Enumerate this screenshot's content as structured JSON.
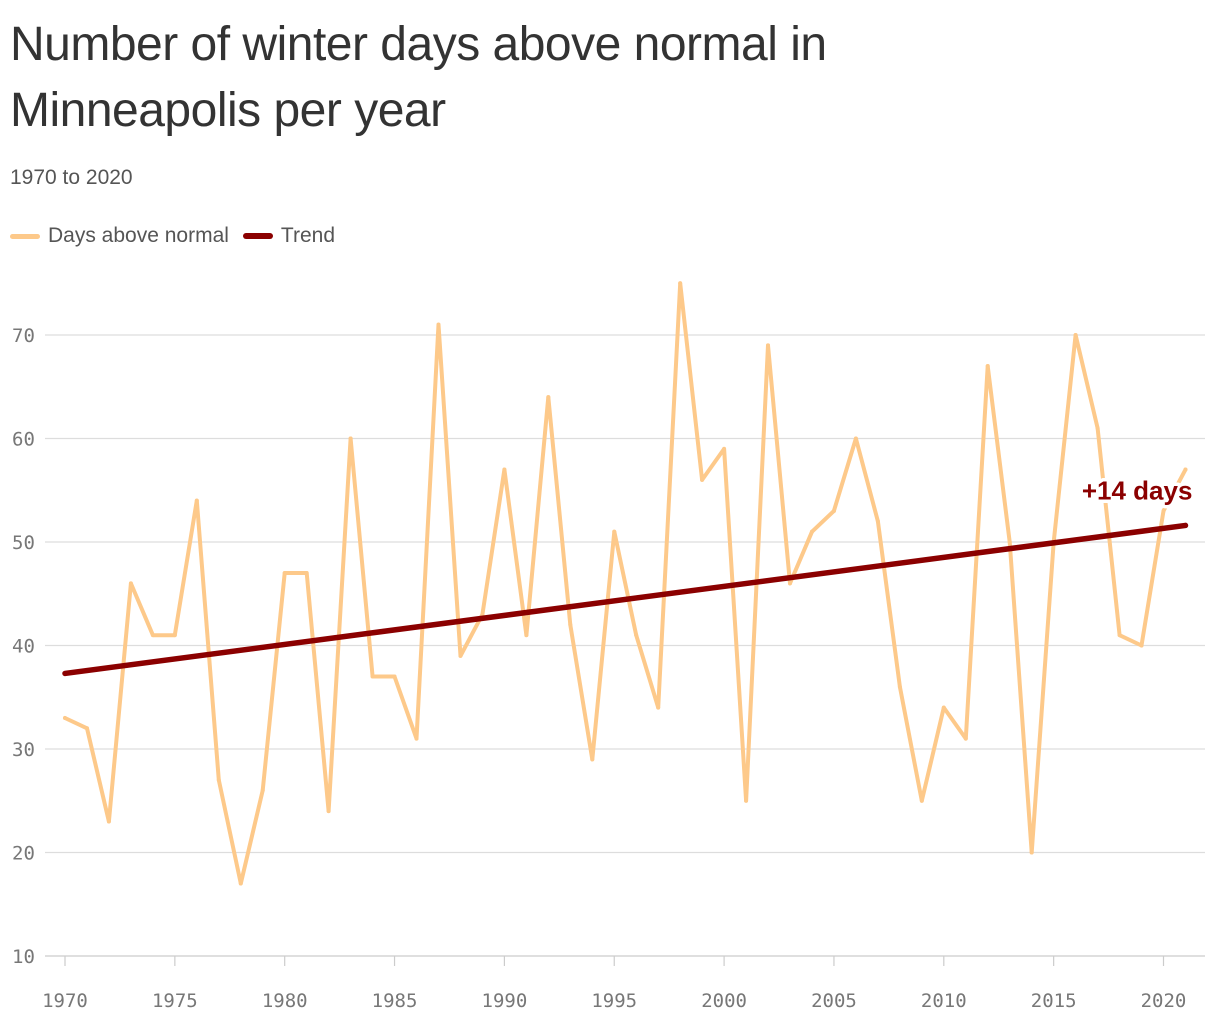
{
  "title": "Number of winter days above normal in Minneapolis per year",
  "subtitle": "1970 to 2020",
  "colors": {
    "days_above_normal": "#fdc98a",
    "trend": "#8b0000",
    "grid": "#dddddd",
    "axis_text": "#777777"
  },
  "chart_data": {
    "type": "line",
    "title": "Number of winter days above normal in Minneapolis per year",
    "subtitle": "1970 to 2020",
    "xlabel": "",
    "ylabel": "",
    "xlim": [
      1970,
      2021
    ],
    "ylim": [
      10,
      75
    ],
    "x_ticks": [
      "1970",
      "1975",
      "1980",
      "1985",
      "1990",
      "1995",
      "2000",
      "2005",
      "2010",
      "2015",
      "2020"
    ],
    "y_ticks": [
      "10",
      "20",
      "30",
      "40",
      "50",
      "60",
      "70"
    ],
    "grid": true,
    "legend_position": "top-left",
    "series": [
      {
        "name": "Days above normal",
        "x": [
          1970,
          1971,
          1972,
          1973,
          1974,
          1975,
          1976,
          1977,
          1978,
          1979,
          1980,
          1981,
          1982,
          1983,
          1984,
          1985,
          1986,
          1987,
          1988,
          1989,
          1990,
          1991,
          1992,
          1993,
          1994,
          1995,
          1996,
          1997,
          1998,
          1999,
          2000,
          2001,
          2002,
          2003,
          2004,
          2005,
          2006,
          2007,
          2008,
          2009,
          2010,
          2011,
          2012,
          2013,
          2014,
          2015,
          2016,
          2017,
          2018,
          2019,
          2020,
          2021
        ],
        "values": [
          33,
          32,
          23,
          46,
          41,
          41,
          54,
          27,
          17,
          26,
          47,
          47,
          24,
          60,
          37,
          37,
          31,
          71,
          39,
          43,
          57,
          41,
          64,
          42,
          29,
          51,
          41,
          34,
          75,
          56,
          59,
          25,
          69,
          46,
          51,
          53,
          60,
          52,
          36,
          25,
          34,
          31,
          67,
          50,
          20,
          50,
          70,
          61,
          41,
          40,
          53,
          57
        ]
      },
      {
        "name": "Trend",
        "x": [
          1970,
          2021
        ],
        "values": [
          37.3,
          51.6
        ]
      }
    ],
    "annotations": [
      {
        "text": "+14 days",
        "x": 2018.8,
        "y": 55
      }
    ]
  }
}
